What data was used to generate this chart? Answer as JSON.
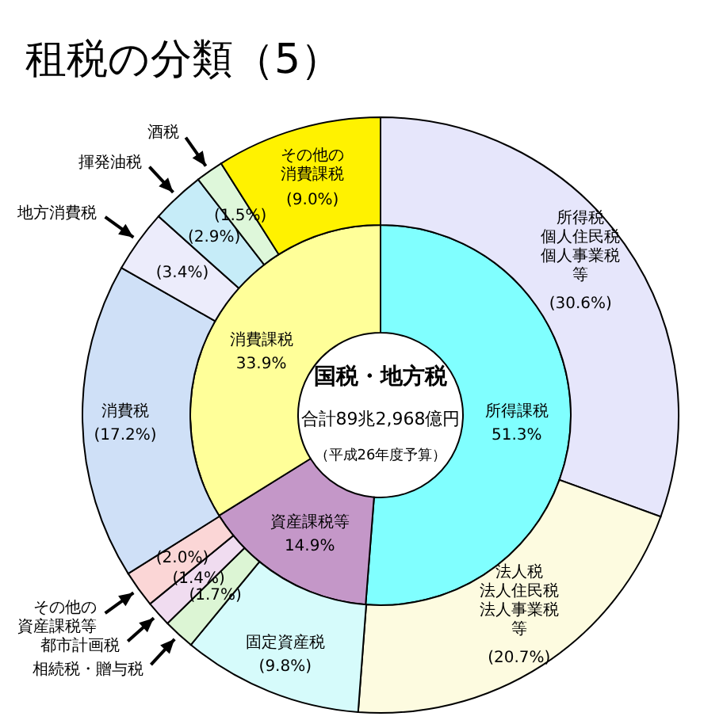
{
  "chart_data": [
    {
      "type": "donut",
      "title": "租税の分類（5）",
      "annotations": [
        "国税・地方税",
        "合計89兆2,968億円",
        "（平成26年度予算）"
      ],
      "categories": [
        "所得課税",
        "資産課税等",
        "消費課税"
      ],
      "values": [
        51.3,
        14.9,
        33.9
      ],
      "colors": [
        "#80ffff",
        "#c497c8",
        "#ffff99"
      ],
      "value_labels": [
        "51.3%",
        "14.9%",
        "33.9%"
      ]
    },
    {
      "type": "donut",
      "categories": [
        "所得税個人住民税個人事業税等",
        "法人税法人住民税法人事業税等",
        "固定資産税",
        "相続税・贈与税",
        "都市計画税",
        "その他の資産課税等",
        "消費税",
        "地方消費税",
        "揮発油税",
        "酒税",
        "その他の消費課税"
      ],
      "values": [
        30.6,
        20.7,
        9.8,
        1.7,
        1.4,
        2.0,
        17.2,
        3.4,
        2.9,
        1.5,
        9.0
      ],
      "colors": [
        "#e6e6fb",
        "#fdfbe0",
        "#d6fbfb",
        "#dcf5d4",
        "#f0dcf0",
        "#fbd6d6",
        "#cfe0f7",
        "#ececfb",
        "#c6ecf8",
        "#def7da",
        "#fff200"
      ],
      "value_labels": [
        "(30.6%)",
        "(20.7%)",
        "(9.8%)",
        "(1.7%)",
        "(1.4%)",
        "(2.0%)",
        "(17.2%)",
        "(3.4%)",
        "(2.9%)",
        "(1.5%)",
        "(9.0%)"
      ]
    }
  ]
}
